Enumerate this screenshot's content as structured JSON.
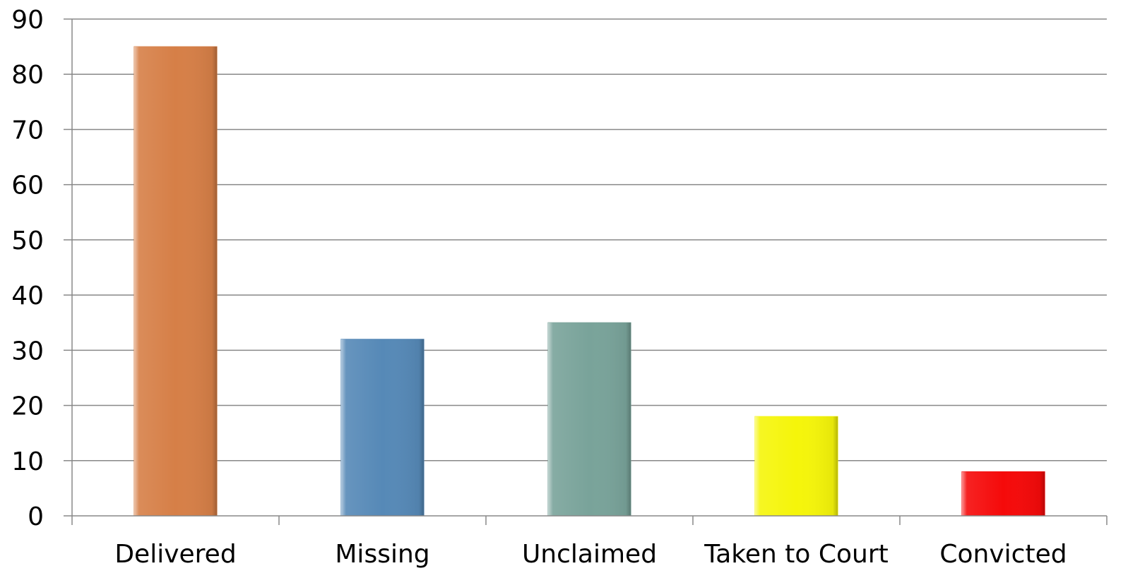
{
  "chart_data": {
    "type": "bar",
    "title": "",
    "xlabel": "",
    "ylabel": "",
    "categories": [
      "Delivered",
      "Missing",
      "Unclaimed",
      "Taken to Court",
      "Convicted"
    ],
    "values": [
      85,
      32,
      35,
      18,
      8
    ],
    "colors": [
      "#D67F47",
      "#5689B7",
      "#79A39A",
      "#F5F50A",
      "#F50A0A"
    ],
    "ylim": [
      0,
      90
    ],
    "yticks": [
      "0",
      "10",
      "20",
      "30",
      "40",
      "50",
      "60",
      "70",
      "80",
      "90"
    ],
    "grid": true,
    "legend": "none"
  }
}
